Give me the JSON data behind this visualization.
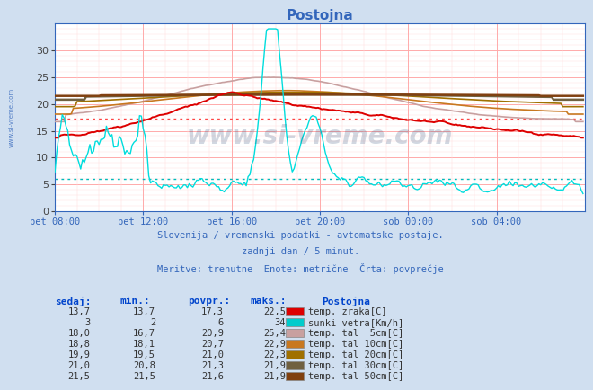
{
  "title": "Postojna",
  "subtitle1": "Slovenija / vremenski podatki - avtomatske postaje.",
  "subtitle2": "zadnji dan / 5 minut.",
  "subtitle3": "Meritve: trenutne  Enote: metrične  Črta: povprečje",
  "bg_color": "#d0dff0",
  "plot_bg_color": "#ffffff",
  "grid_major_color": "#ffaaaa",
  "grid_minor_color": "#ffdddd",
  "xlim": [
    0,
    288
  ],
  "ylim": [
    0,
    35
  ],
  "yticks": [
    0,
    5,
    10,
    15,
    20,
    25,
    30
  ],
  "xtick_labels": [
    "pet 08:00",
    "pet 12:00",
    "pet 16:00",
    "pet 20:00",
    "sob 00:00",
    "sob 04:00"
  ],
  "xtick_positions": [
    0,
    48,
    96,
    144,
    192,
    240
  ],
  "avg_temp": 17.3,
  "avg_sunki": 6.0,
  "series_colors": {
    "temp_zrak": "#dd0000",
    "sunki": "#00dddd",
    "tal5": "#c8a0a0",
    "tal10": "#c87820",
    "tal20": "#a07000",
    "tal30": "#706040",
    "tal50": "#804010"
  },
  "table_headers": [
    "sedaj:",
    "min.:",
    "povpr.:",
    "maks.:"
  ],
  "table_rows": [
    [
      "13,7",
      "13,7",
      "17,3",
      "22,5",
      "#dd0000",
      "temp. zraka[C]"
    ],
    [
      "3",
      "2",
      "6",
      "34",
      "#00cccc",
      "sunki vetra[Km/h]"
    ],
    [
      "18,0",
      "16,7",
      "20,9",
      "25,4",
      "#c8a0a0",
      "temp. tal  5cm[C]"
    ],
    [
      "18,8",
      "18,1",
      "20,7",
      "22,9",
      "#c87820",
      "temp. tal 10cm[C]"
    ],
    [
      "19,9",
      "19,5",
      "21,0",
      "22,3",
      "#a07000",
      "temp. tal 20cm[C]"
    ],
    [
      "21,0",
      "20,8",
      "21,3",
      "21,9",
      "#706040",
      "temp. tal 30cm[C]"
    ],
    [
      "21,5",
      "21,5",
      "21,6",
      "21,9",
      "#804010",
      "temp. tal 50cm[C]"
    ]
  ],
  "watermark": "www.si-vreme.com",
  "left_label": "www.si-vreme.com"
}
